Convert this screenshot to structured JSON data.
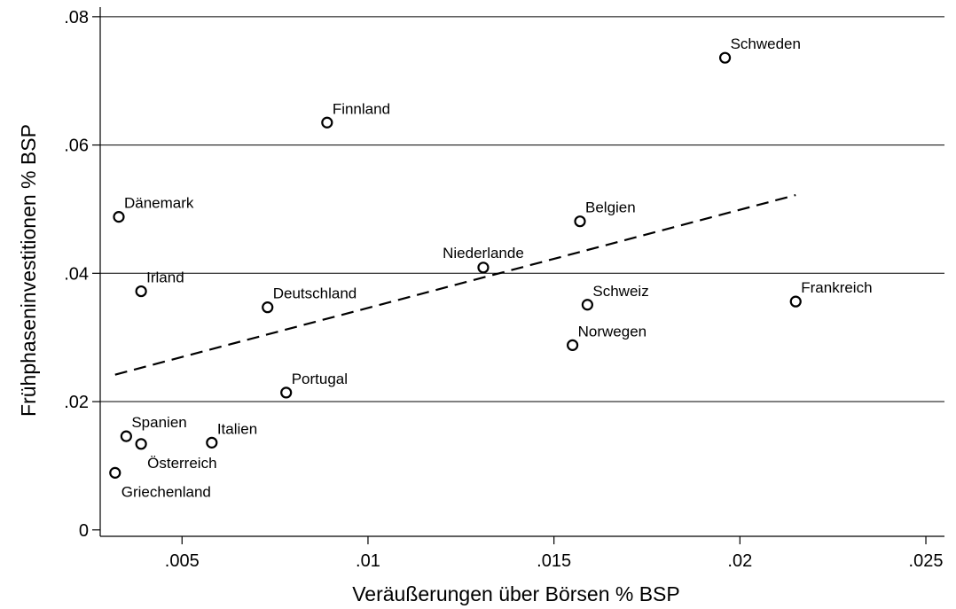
{
  "chart_data": {
    "type": "scatter",
    "title": "",
    "xlabel": "Veräußerungen über Börsen % BSP",
    "ylabel": "Frühphaseninvestitionen % BSP",
    "xlim": [
      0.0028,
      0.0255
    ],
    "ylim": [
      -0.001,
      0.0815
    ],
    "x_ticks": [
      0.005,
      0.01,
      0.015,
      0.02,
      0.025
    ],
    "x_tick_labels": [
      ".005",
      ".01",
      ".015",
      ".02",
      ".025"
    ],
    "y_ticks": [
      0,
      0.02,
      0.04,
      0.06,
      0.08
    ],
    "y_tick_labels": [
      "0",
      ".02",
      ".04",
      ".06",
      ".08"
    ],
    "grid": "horizontal",
    "points": [
      {
        "label": "Schweden",
        "x": 0.0196,
        "y": 0.0736,
        "pos": "ne"
      },
      {
        "label": "Finnland",
        "x": 0.0089,
        "y": 0.0635,
        "pos": "ne"
      },
      {
        "label": "Dänemark",
        "x": 0.0033,
        "y": 0.0488,
        "pos": "ne"
      },
      {
        "label": "Belgien",
        "x": 0.0157,
        "y": 0.0481,
        "pos": "ne"
      },
      {
        "label": "Niederlande",
        "x": 0.0131,
        "y": 0.0409,
        "pos": "n"
      },
      {
        "label": "Irland",
        "x": 0.0039,
        "y": 0.0372,
        "pos": "ne"
      },
      {
        "label": "Deutschland",
        "x": 0.0073,
        "y": 0.0347,
        "pos": "ne"
      },
      {
        "label": "Schweiz",
        "x": 0.0159,
        "y": 0.0351,
        "pos": "ne"
      },
      {
        "label": "Frankreich",
        "x": 0.0215,
        "y": 0.0356,
        "pos": "ne"
      },
      {
        "label": "Norwegen",
        "x": 0.0155,
        "y": 0.0288,
        "pos": "ne"
      },
      {
        "label": "Portugal",
        "x": 0.0078,
        "y": 0.0214,
        "pos": "ne"
      },
      {
        "label": "Spanien",
        "x": 0.0035,
        "y": 0.0146,
        "pos": "ne"
      },
      {
        "label": "Italien",
        "x": 0.0058,
        "y": 0.0136,
        "pos": "ne"
      },
      {
        "label": "Österreich",
        "x": 0.0039,
        "y": 0.0134,
        "pos": "se"
      },
      {
        "label": "Griechenland",
        "x": 0.0032,
        "y": 0.0089,
        "pos": "se"
      }
    ],
    "fit_line": {
      "x": [
        0.0032,
        0.0215
      ],
      "y": [
        0.0242,
        0.0522
      ],
      "style": "dashed"
    }
  }
}
